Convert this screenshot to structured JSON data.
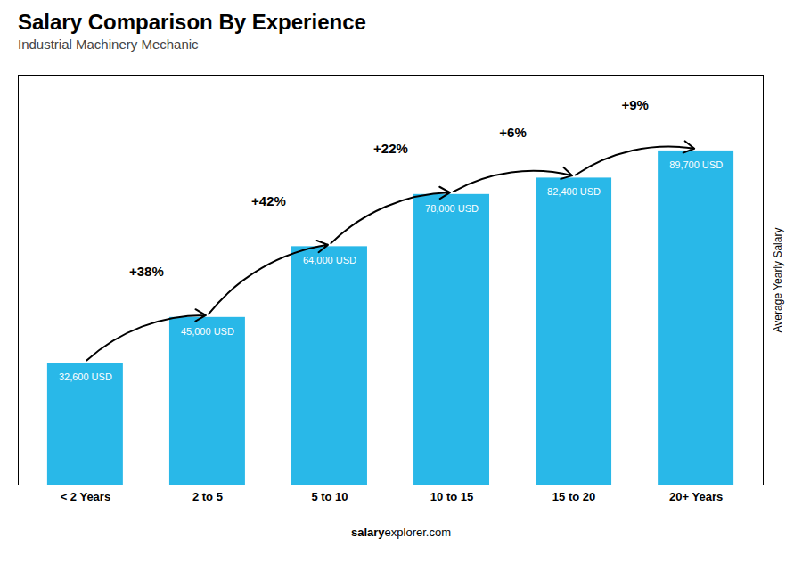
{
  "chart_data": {
    "type": "bar",
    "title": "Salary Comparison By Experience",
    "subtitle": "Industrial Machinery Mechanic",
    "ylabel": "Average Yearly Salary",
    "footer": [
      "salary",
      "explorer.com"
    ],
    "categories": [
      "< 2 Years",
      "2 to 5",
      "5 to 10",
      "10 to 15",
      "15 to 20",
      "20+ Years"
    ],
    "values": [
      32600,
      45000,
      64000,
      78000,
      82400,
      89700
    ],
    "value_labels": [
      "32,600 USD",
      "45,000 USD",
      "64,000 USD",
      "78,000 USD",
      "82,400 USD",
      "89,700 USD"
    ],
    "annotations": [
      "+38%",
      "+42%",
      "+22%",
      "+6%",
      "+9%"
    ],
    "color": "#29b8e8",
    "ylim": [
      0,
      110000
    ],
    "data_labels": true,
    "tick_labels": "x",
    "grid": false
  }
}
